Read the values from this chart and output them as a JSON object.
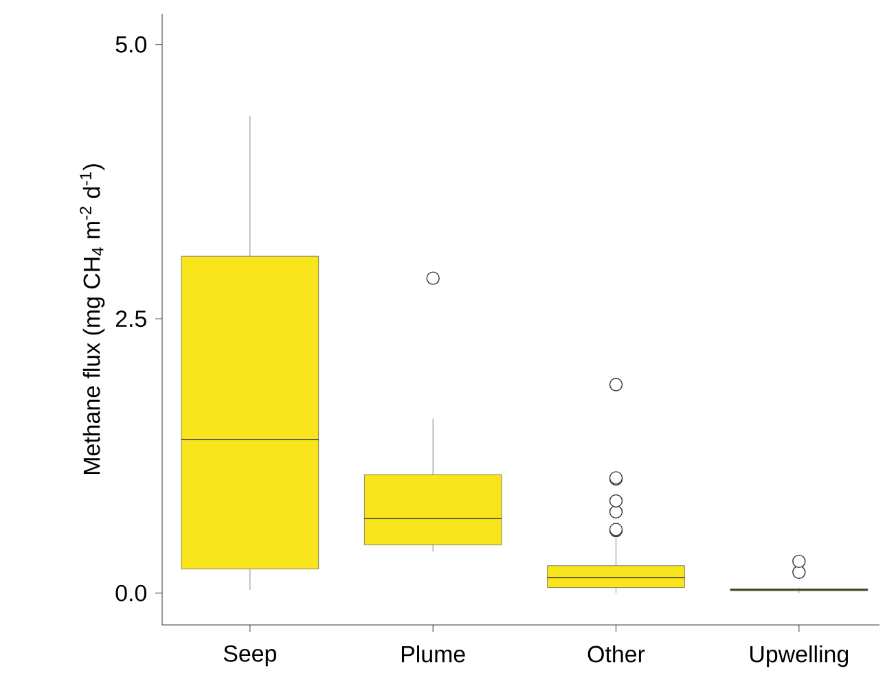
{
  "chart_data": {
    "type": "box",
    "ylabel": "Methane flux (mg CH$_{4}$ m$^{-2}$ d$^{-1}$)",
    "categories": [
      "Seep",
      "Plume",
      "Other",
      "Upwelling"
    ],
    "color": "#f9e51c",
    "boxes": [
      {
        "low": 0.03,
        "q1": 0.22,
        "median": 1.4,
        "q3": 3.07,
        "high": 4.35
      },
      {
        "low": 0.38,
        "q1": 0.44,
        "median": 0.68,
        "q3": 1.08,
        "high": 1.59,
        "outliers": [
          2.87
        ]
      },
      {
        "low": 0.0,
        "q1": 0.05,
        "median": 0.14,
        "q3": 0.25,
        "high": 0.5,
        "outliers": [
          0.57,
          0.58,
          0.74,
          0.84,
          1.04,
          1.05,
          1.9
        ]
      },
      {
        "low": 0.0,
        "q1": 0.02,
        "median": 0.03,
        "q3": 0.04,
        "high": 0.05,
        "outliers": [
          0.19,
          0.29
        ]
      }
    ],
    "ylim": [
      -0.29,
      5.28
    ],
    "yticks": [
      {
        "value": 0,
        "label": "0.0"
      },
      {
        "value": 2.5,
        "label": "2.5"
      },
      {
        "value": 5,
        "label": "5.0"
      }
    ]
  }
}
